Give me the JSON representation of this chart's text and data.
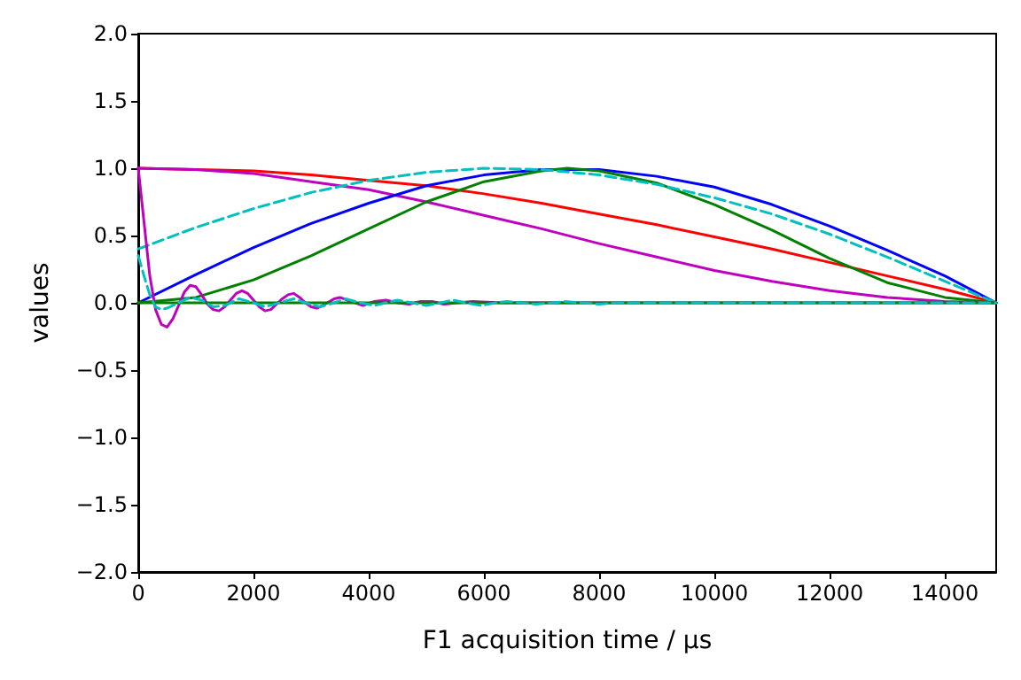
{
  "chart_data": {
    "type": "line",
    "xlabel": "F1 acquisition time / µs",
    "ylabel": "values",
    "xlim": [
      0,
      14890
    ],
    "xticks": [
      0,
      2000,
      4000,
      6000,
      8000,
      10000,
      12000,
      14000
    ],
    "ylim": [
      -2,
      2
    ],
    "yticks": [
      {
        "value": -2,
        "label": "−2.0"
      },
      {
        "value": -1.5,
        "label": "−1.5"
      },
      {
        "value": -1,
        "label": "−1.0"
      },
      {
        "value": -0.5,
        "label": "−0.5"
      },
      {
        "value": 0,
        "label": "0.0"
      },
      {
        "value": 0.5,
        "label": "0.5"
      },
      {
        "value": 1,
        "label": "1.0"
      },
      {
        "value": 1.5,
        "label": "1.5"
      },
      {
        "value": 2,
        "label": "2.0"
      }
    ],
    "grid": false,
    "legend": false,
    "marker": "none",
    "series": [
      {
        "color": "#ff0000",
        "x": [
          0,
          1000,
          2000,
          3000,
          4000,
          5000,
          6000,
          7000,
          8000,
          9000,
          10000,
          11000,
          12000,
          13000,
          14000,
          14890
        ],
        "values": [
          1,
          0.99,
          0.98,
          0.95,
          0.91,
          0.87,
          0.81,
          0.74,
          0.66,
          0.58,
          0.49,
          0.4,
          0.3,
          0.2,
          0.1,
          0
        ]
      },
      {
        "color": "#bf00bf",
        "x": [
          0,
          1000,
          2000,
          3000,
          4000,
          5000,
          6000,
          7000,
          8000,
          9000,
          10000,
          11000,
          12000,
          13000,
          14000,
          14890
        ],
        "values": [
          1,
          0.99,
          0.96,
          0.9,
          0.84,
          0.75,
          0.65,
          0.55,
          0.44,
          0.34,
          0.24,
          0.16,
          0.09,
          0.04,
          0.01,
          0
        ]
      },
      {
        "color": "#0000ff",
        "x": [
          0,
          1000,
          2000,
          3000,
          4000,
          5000,
          6000,
          7000,
          8000,
          9000,
          10000,
          11000,
          12000,
          13000,
          14000,
          14890
        ],
        "values": [
          0,
          0.21,
          0.41,
          0.59,
          0.74,
          0.87,
          0.95,
          0.99,
          0.99,
          0.94,
          0.86,
          0.73,
          0.57,
          0.39,
          0.2,
          0
        ]
      },
      {
        "color": "#008000",
        "x": [
          0,
          1000,
          2000,
          3000,
          4000,
          5000,
          6000,
          7000,
          7445,
          8000,
          9000,
          10000,
          11000,
          12000,
          13000,
          14000,
          14890
        ],
        "values": [
          0,
          0.04,
          0.17,
          0.35,
          0.55,
          0.75,
          0.9,
          0.98,
          1,
          0.98,
          0.89,
          0.73,
          0.54,
          0.33,
          0.15,
          0.04,
          0
        ]
      },
      {
        "color": "#00bfbf",
        "line_style": "dashed",
        "x": [
          0,
          1000,
          2000,
          3000,
          4000,
          5000,
          6000,
          7000,
          8000,
          9000,
          10000,
          11000,
          12000,
          13000,
          14000,
          14890
        ],
        "values": [
          0.4,
          0.56,
          0.7,
          0.82,
          0.91,
          0.97,
          1,
          0.99,
          0.95,
          0.88,
          0.78,
          0.66,
          0.51,
          0.34,
          0.16,
          0
        ]
      },
      {
        "color": "#bf00bf",
        "x": [
          0,
          100,
          200,
          300,
          400,
          500,
          600,
          700,
          800,
          900,
          1000,
          1100,
          1200,
          1300,
          1400,
          1500,
          1600,
          1700,
          1800,
          1900,
          2000,
          2100,
          2200,
          2300,
          2400,
          2500,
          2600,
          2700,
          2800,
          2900,
          3000,
          3100,
          3200,
          3400,
          3500,
          3700,
          3900,
          4100,
          4300,
          4500,
          4700,
          4900,
          5100,
          5300,
          5800,
          6300,
          14890
        ],
        "values": [
          1,
          0.6,
          0.2,
          -0.05,
          -0.16,
          -0.18,
          -0.12,
          -0.02,
          0.08,
          0.13,
          0.12,
          0.06,
          -0.01,
          -0.05,
          -0.06,
          -0.03,
          0.02,
          0.07,
          0.09,
          0.07,
          0.02,
          -0.03,
          -0.06,
          -0.05,
          -0.01,
          0.03,
          0.06,
          0.07,
          0.04,
          0,
          -0.03,
          -0.04,
          -0.02,
          0.03,
          0.04,
          0.01,
          -0.02,
          0.01,
          0.02,
          0,
          -0.01,
          0.01,
          0.01,
          -0.01,
          0.01,
          0,
          0
        ]
      },
      {
        "color": "#008000",
        "x": [
          0,
          14890
        ],
        "values": [
          0,
          0
        ]
      },
      {
        "color": "#00bfbf",
        "line_style": "dashed",
        "x": [
          0,
          100,
          200,
          300,
          400,
          500,
          700,
          900,
          1100,
          1300,
          1500,
          1750,
          2000,
          2200,
          2450,
          2700,
          2900,
          3150,
          3400,
          3600,
          3850,
          4100,
          4300,
          4500,
          4750,
          5000,
          5250,
          5450,
          5700,
          5950,
          6200,
          6400,
          6650,
          6900,
          7200,
          7400,
          7700,
          8000,
          8300,
          14890
        ],
        "values": [
          0.35,
          0.2,
          0.06,
          -0.03,
          -0.05,
          -0.04,
          0,
          0.04,
          0.02,
          -0.03,
          -0.02,
          0.03,
          0,
          -0.03,
          0,
          0.03,
          0,
          -0.03,
          0,
          0.03,
          0,
          -0.02,
          0,
          0.02,
          0,
          -0.02,
          0,
          0.02,
          0,
          -0.02,
          0,
          0.01,
          0,
          -0.01,
          0,
          0.01,
          0,
          -0.01,
          0,
          0
        ]
      }
    ]
  }
}
